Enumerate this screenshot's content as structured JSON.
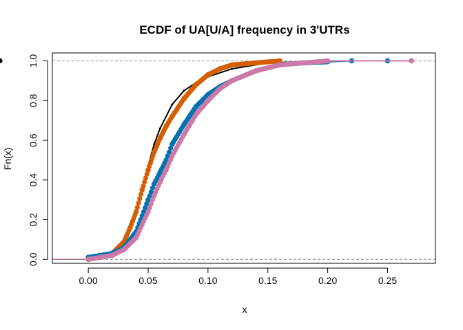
{
  "chart_data": {
    "type": "line",
    "title": "ECDF of UA[U/A] frequency in 3'UTRs",
    "xlabel": "x",
    "ylabel": "Fn(x)",
    "xlim": [
      -0.03,
      0.29
    ],
    "ylim": [
      -0.02,
      1.04
    ],
    "x_ticks": [
      0.0,
      0.05,
      0.1,
      0.15,
      0.2,
      0.25
    ],
    "x_tick_labels": [
      "0.00",
      "0.05",
      "0.10",
      "0.15",
      "0.20",
      "0.25"
    ],
    "y_ticks": [
      0.0,
      0.2,
      0.4,
      0.6,
      0.8,
      1.0
    ],
    "y_tick_labels": [
      "0.0",
      "0.2",
      "0.4",
      "0.6",
      "0.8",
      "1.0"
    ],
    "reference_lines_y": [
      0,
      1
    ],
    "grid": false,
    "series": [
      {
        "color": "#000000",
        "points": [
          [
            0.0,
            0.01
          ],
          [
            0.01,
            0.02
          ],
          [
            0.02,
            0.04
          ],
          [
            0.03,
            0.1
          ],
          [
            0.035,
            0.16
          ],
          [
            0.04,
            0.25
          ],
          [
            0.045,
            0.36
          ],
          [
            0.05,
            0.47
          ],
          [
            0.055,
            0.58
          ],
          [
            0.06,
            0.66
          ],
          [
            0.07,
            0.78
          ],
          [
            0.08,
            0.85
          ],
          [
            0.09,
            0.89
          ],
          [
            0.1,
            0.92
          ],
          [
            0.12,
            0.96
          ],
          [
            0.15,
            0.99
          ],
          [
            0.2,
            1.0
          ]
        ]
      },
      {
        "color": "#D55E00",
        "points": [
          [
            0.0,
            0.0
          ],
          [
            0.01,
            0.01
          ],
          [
            0.02,
            0.03
          ],
          [
            0.03,
            0.09
          ],
          [
            0.035,
            0.16
          ],
          [
            0.04,
            0.24
          ],
          [
            0.045,
            0.35
          ],
          [
            0.05,
            0.45
          ],
          [
            0.055,
            0.54
          ],
          [
            0.06,
            0.61
          ],
          [
            0.065,
            0.67
          ],
          [
            0.07,
            0.72
          ],
          [
            0.08,
            0.81
          ],
          [
            0.09,
            0.88
          ],
          [
            0.1,
            0.93
          ],
          [
            0.11,
            0.96
          ],
          [
            0.12,
            0.98
          ],
          [
            0.14,
            0.99
          ],
          [
            0.16,
            1.0
          ]
        ]
      },
      {
        "color": "#0072B2",
        "points": [
          [
            0.0,
            0.01
          ],
          [
            0.01,
            0.02
          ],
          [
            0.02,
            0.03
          ],
          [
            0.03,
            0.06
          ],
          [
            0.04,
            0.14
          ],
          [
            0.05,
            0.3
          ],
          [
            0.055,
            0.38
          ],
          [
            0.06,
            0.44
          ],
          [
            0.065,
            0.5
          ],
          [
            0.07,
            0.58
          ],
          [
            0.08,
            0.68
          ],
          [
            0.09,
            0.77
          ],
          [
            0.1,
            0.83
          ],
          [
            0.11,
            0.87
          ],
          [
            0.12,
            0.9
          ],
          [
            0.14,
            0.95
          ],
          [
            0.16,
            0.98
          ],
          [
            0.18,
            0.99
          ],
          [
            0.22,
            1.0
          ],
          [
            0.25,
            1.0
          ],
          [
            0.27,
            1.0
          ]
        ]
      },
      {
        "color": "#CC79A7",
        "points": [
          [
            0.0,
            0.0
          ],
          [
            0.01,
            0.01
          ],
          [
            0.02,
            0.02
          ],
          [
            0.03,
            0.05
          ],
          [
            0.04,
            0.11
          ],
          [
            0.05,
            0.24
          ],
          [
            0.055,
            0.32
          ],
          [
            0.06,
            0.39
          ],
          [
            0.065,
            0.45
          ],
          [
            0.07,
            0.52
          ],
          [
            0.08,
            0.63
          ],
          [
            0.09,
            0.73
          ],
          [
            0.1,
            0.8
          ],
          [
            0.11,
            0.86
          ],
          [
            0.12,
            0.9
          ],
          [
            0.14,
            0.95
          ],
          [
            0.16,
            0.98
          ],
          [
            0.18,
            0.99
          ],
          [
            0.2,
            1.0
          ],
          [
            0.27,
            1.0
          ]
        ]
      }
    ]
  }
}
